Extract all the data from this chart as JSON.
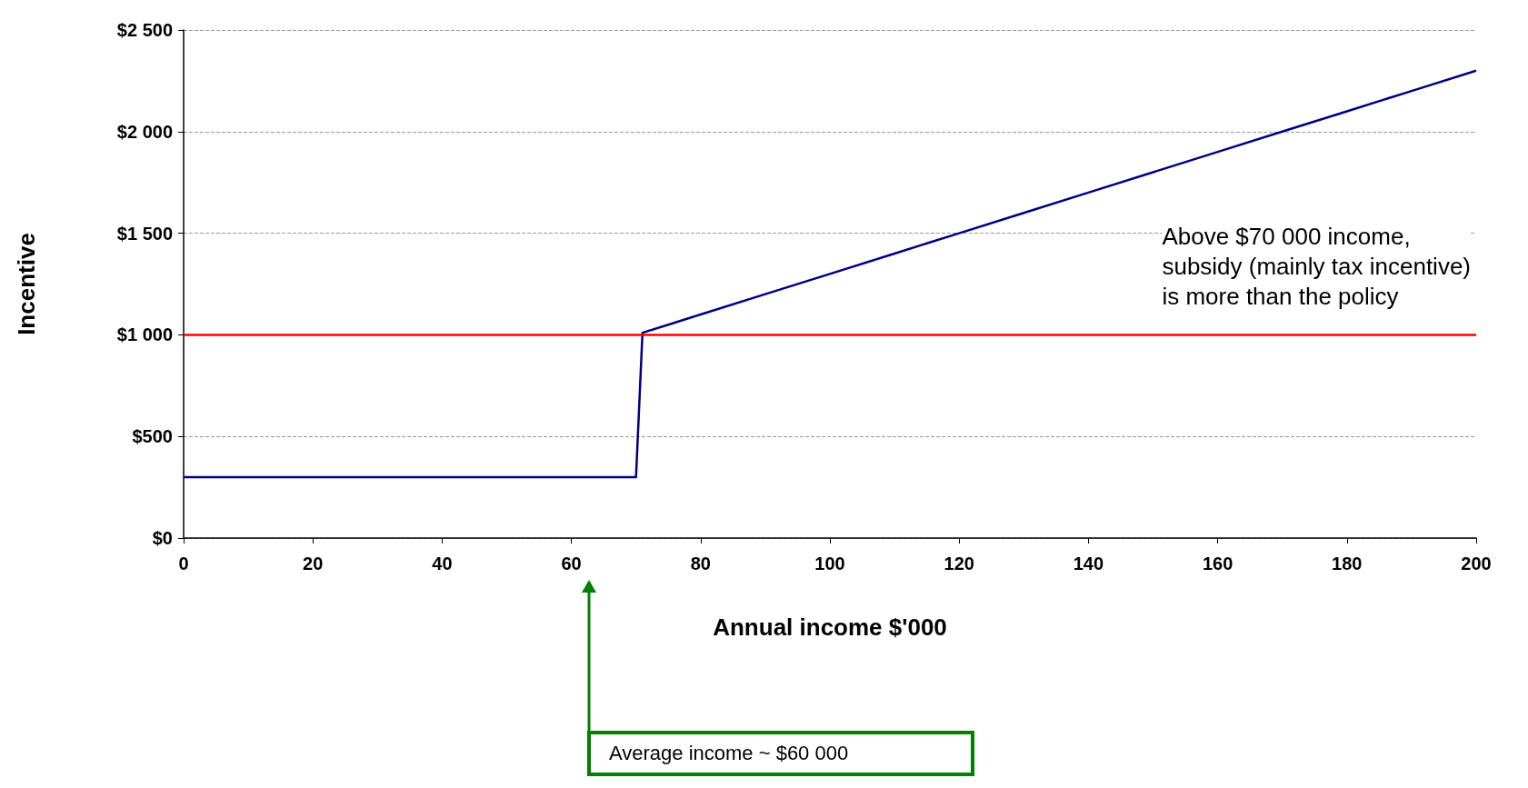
{
  "chart_data": {
    "type": "line",
    "xlabel": "Annual income $'000",
    "ylabel": "Incentive",
    "x": [
      0,
      70,
      71,
      75,
      80,
      90,
      100,
      110,
      120,
      130,
      140,
      150,
      160,
      170,
      180,
      190,
      200
    ],
    "series": [
      {
        "color": "#000080",
        "values": [
          300,
          300,
          1010,
          1050,
          1100,
          1200,
          1300,
          1400,
          1500,
          1600,
          1700,
          1800,
          1900,
          2000,
          2100,
          2200,
          2300
        ]
      }
    ],
    "xlim": [
      0,
      200
    ],
    "xticks": [
      0,
      20,
      40,
      60,
      80,
      100,
      120,
      140,
      160,
      180,
      200
    ],
    "ylim": [
      0,
      2500
    ],
    "yticks": [
      {
        "value": 0,
        "label": "$0"
      },
      {
        "value": 500,
        "label": "$500"
      },
      {
        "value": 1000,
        "label": "$1 000"
      },
      {
        "value": 1500,
        "label": "$1 500"
      },
      {
        "value": 2000,
        "label": "$2 000"
      },
      {
        "value": 2500,
        "label": "$2 500"
      }
    ],
    "grid": "y",
    "ref_lines": [
      {
        "axis": "y",
        "value": 1000,
        "color": "#ff0000"
      }
    ],
    "annotations": [
      "Above $70 000 income,\nsubsidy (mainly tax incentive)\nis more than the policy",
      "Average income ~ $60 000"
    ]
  }
}
